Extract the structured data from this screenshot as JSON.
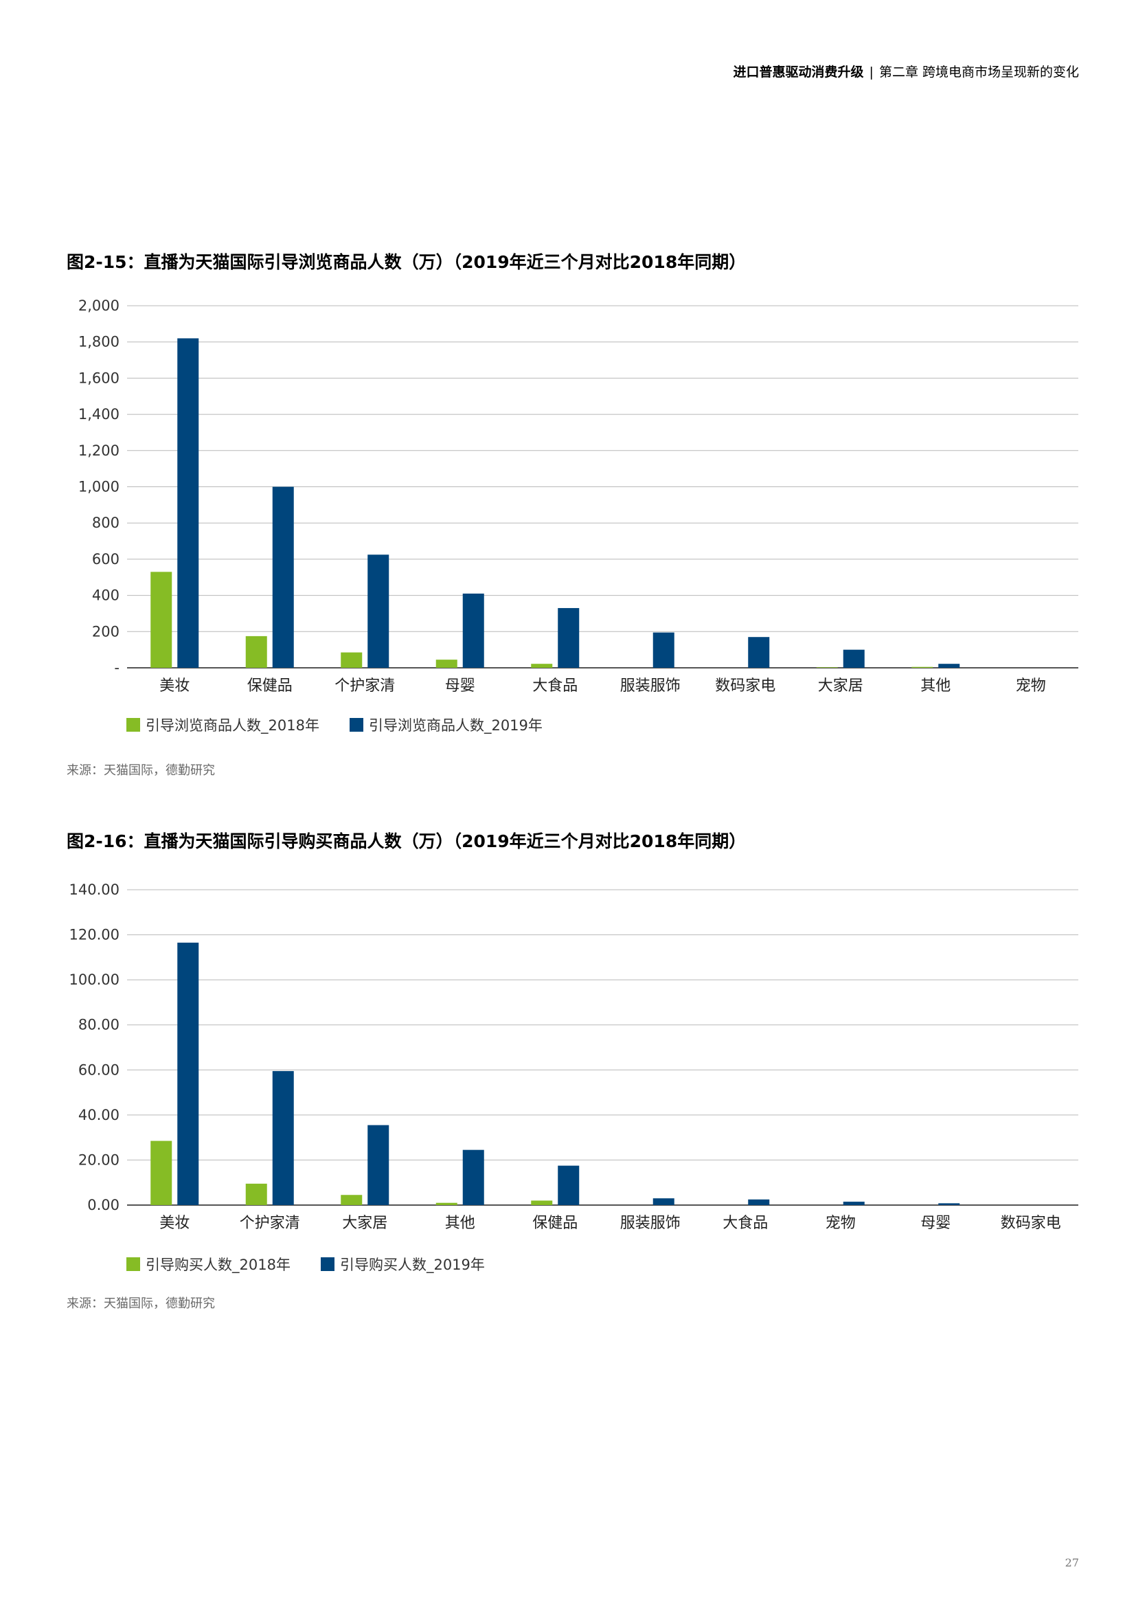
{
  "header": {
    "report": "进口普惠驱动消费升级",
    "separator": "|",
    "chapter": "第二章 跨境电商市场呈现新的变化"
  },
  "figures": [
    {
      "title": "图2-15：直播为天猫国际引导浏览商品人数（万）（2019年近三个月对比2018年同期）",
      "source": "来源：天猫国际，德勤研究"
    },
    {
      "title": "图2-16：直播为天猫国际引导购买商品人数（万）（2019年近三个月对比2018年同期）",
      "source": "来源：天猫国际，德勤研究"
    }
  ],
  "colors": {
    "y2018": "#86bc25",
    "y2019": "#00457c",
    "grid": "#b8b8b8",
    "axis": "#555555"
  },
  "chart_data": [
    {
      "type": "bar",
      "categories": [
        "美妆",
        "保健品",
        "个护家清",
        "母婴",
        "大食品",
        "服装服饰",
        "数码家电",
        "大家居",
        "其他",
        "宠物"
      ],
      "series": [
        {
          "name": "引导浏览商品人数_2018年",
          "values": [
            530,
            175,
            85,
            45,
            22,
            0,
            0,
            3,
            5,
            0
          ]
        },
        {
          "name": "引导浏览商品人数_2019年",
          "values": [
            1820,
            1000,
            625,
            410,
            330,
            195,
            170,
            100,
            22,
            0
          ]
        }
      ],
      "ylim": [
        0,
        2000
      ],
      "yticks": [
        "-",
        "200",
        "400",
        "600",
        "800",
        "1,000",
        "1,200",
        "1,400",
        "1,600",
        "1,800",
        "2,000"
      ],
      "grid": true,
      "legend": "bottom-left"
    },
    {
      "type": "bar",
      "categories": [
        "美妆",
        "个护家清",
        "大家居",
        "其他",
        "保健品",
        "服装服饰",
        "大食品",
        "宠物",
        "母婴",
        "数码家电"
      ],
      "series": [
        {
          "name": "引导购买人数_2018年",
          "values": [
            28.5,
            9.5,
            4.5,
            1,
            2,
            0,
            0,
            0,
            0,
            0
          ]
        },
        {
          "name": "引导购买人数_2019年",
          "values": [
            116.5,
            59.5,
            35.5,
            24.5,
            17.5,
            3,
            2.5,
            1.5,
            0.8,
            0
          ]
        }
      ],
      "ylim": [
        0,
        140
      ],
      "yticks": [
        "0.00",
        "20.00",
        "40.00",
        "60.00",
        "80.00",
        "100.00",
        "120.00",
        "140.00"
      ],
      "grid": true,
      "legend": "bottom-left"
    }
  ],
  "page_number": "27"
}
